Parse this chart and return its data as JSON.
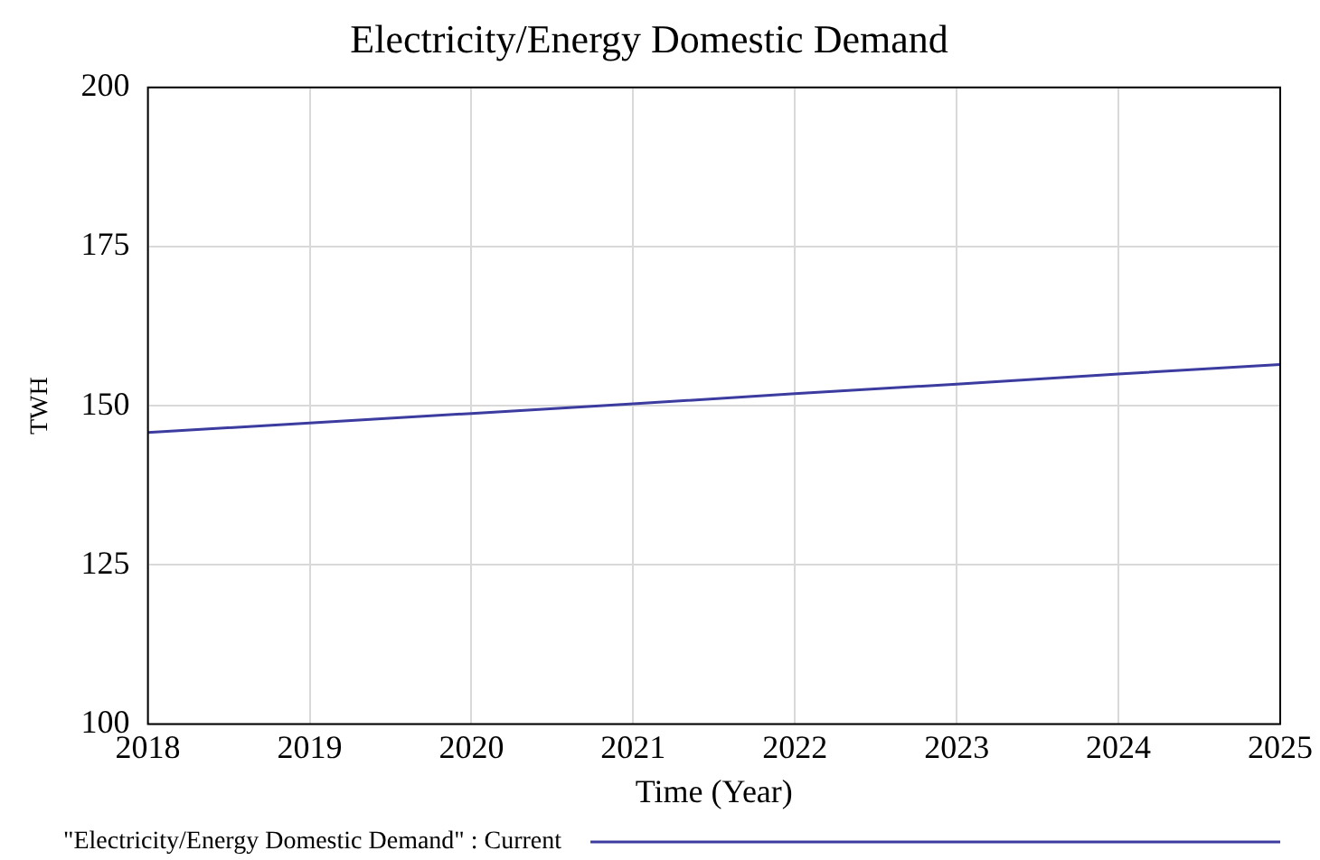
{
  "chart_data": {
    "type": "line",
    "title": "Electricity/Energy Domestic Demand",
    "xlabel": "Time (Year)",
    "ylabel": "TWH",
    "x": [
      2018,
      2019,
      2020,
      2021,
      2022,
      2023,
      2024,
      2025
    ],
    "series": [
      {
        "name": "\"Electricity/Energy Domestic Demand\" : Current",
        "color": "#3c3ca0",
        "values": [
          145.8,
          147.3,
          148.8,
          150.3,
          151.9,
          153.4,
          155.0,
          156.5
        ]
      }
    ],
    "xlim": [
      2018,
      2025
    ],
    "xticks": [
      2018,
      2019,
      2020,
      2021,
      2022,
      2023,
      2024,
      2025
    ],
    "ylim": [
      100,
      200
    ],
    "yticks": [
      100,
      125,
      150,
      175,
      200
    ],
    "grid": true,
    "legend": "bottom",
    "marker": "none",
    "line_style": "solid"
  }
}
